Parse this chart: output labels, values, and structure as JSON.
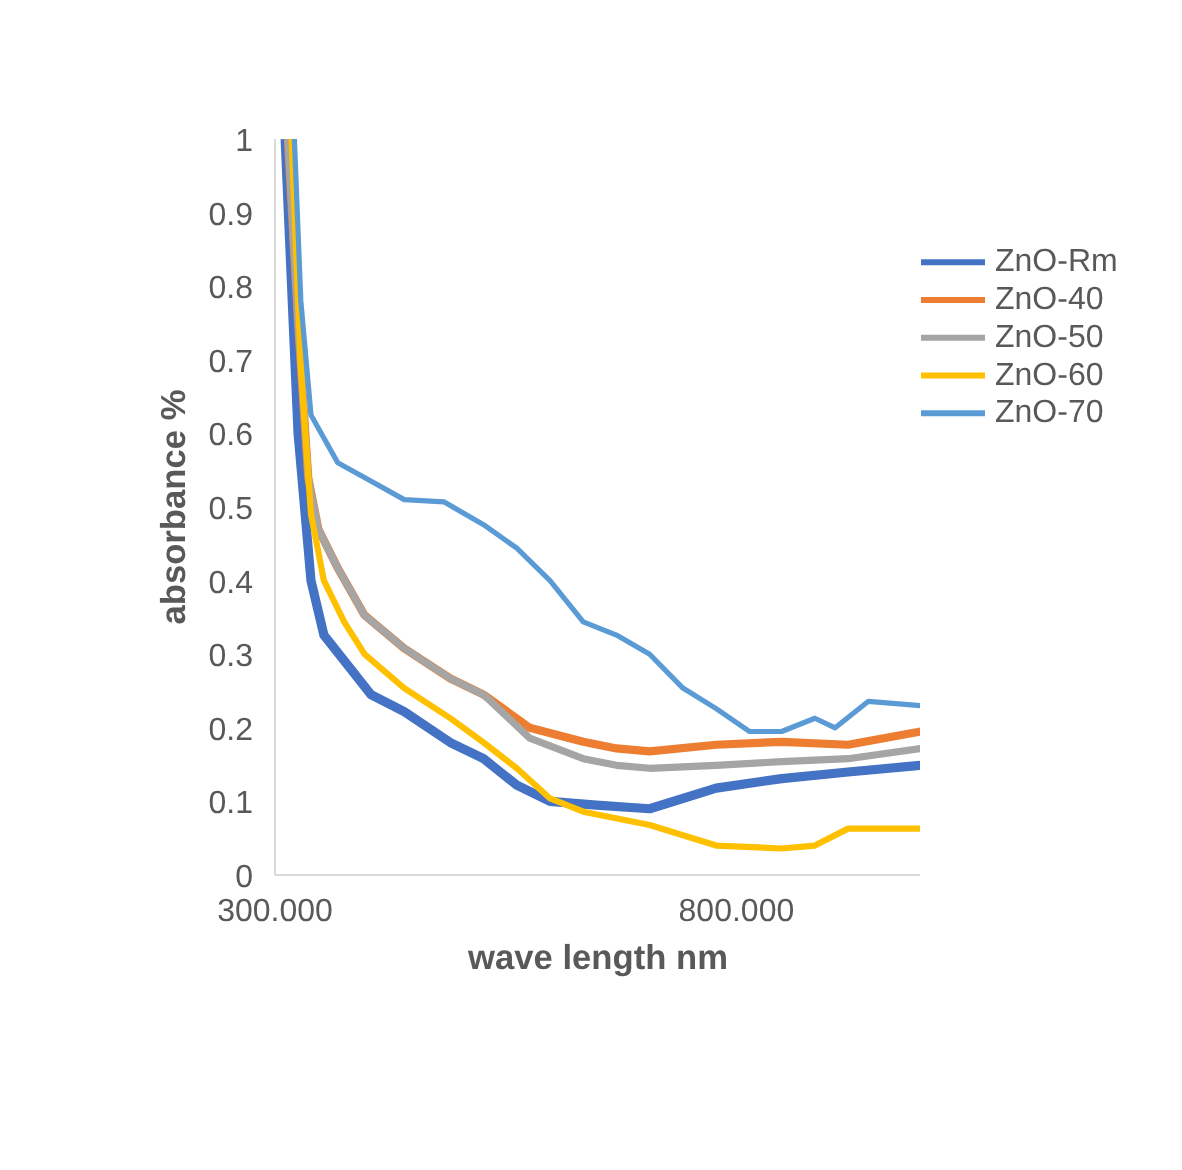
{
  "chart_data": {
    "type": "line",
    "xlabel": "wave length nm",
    "ylabel": "absorbance %",
    "xlim": [
      300,
      1000
    ],
    "xticks": [
      {
        "value": 300,
        "label": "300.000"
      },
      {
        "value": 800,
        "label": "800.000"
      }
    ],
    "ylim": [
      0,
      1
    ],
    "yticks": [
      0,
      0.1,
      0.2,
      0.3,
      0.4,
      0.5,
      0.6,
      0.7,
      0.8,
      0.9,
      1
    ],
    "grid": false,
    "legend": "top right",
    "line_style": "solid",
    "marker": "none",
    "series": [
      {
        "name": "ZnO-Rm",
        "color": "#4472c4",
        "x": [
          311,
          325,
          339,
          353,
          382,
          404,
          440,
          490,
          526,
          562,
          598,
          648,
          706,
          778,
          849,
          921,
          1000
        ],
        "values": [
          1,
          0.6,
          0.4,
          0.326,
          0.28,
          0.245,
          0.222,
          0.18,
          0.158,
          0.122,
          0.1,
          0.095,
          0.09,
          0.118,
          0.131,
          0.14,
          0.149
        ]
      },
      {
        "name": "ZnO-40",
        "color": "#ed7d31",
        "x": [
          314,
          325,
          336,
          347,
          368,
          397,
          440,
          490,
          526,
          576,
          634,
          670,
          706,
          778,
          849,
          921,
          1000
        ],
        "values": [
          1,
          0.75,
          0.54,
          0.47,
          0.417,
          0.353,
          0.308,
          0.267,
          0.245,
          0.2,
          0.181,
          0.172,
          0.168,
          0.177,
          0.181,
          0.177,
          0.195
        ]
      },
      {
        "name": "ZnO-50",
        "color": "#a5a5a5",
        "x": [
          314,
          325,
          336,
          347,
          368,
          397,
          440,
          490,
          526,
          576,
          634,
          670,
          706,
          778,
          849,
          921,
          1000
        ],
        "values": [
          1,
          0.75,
          0.54,
          0.47,
          0.417,
          0.353,
          0.308,
          0.267,
          0.245,
          0.186,
          0.158,
          0.149,
          0.145,
          0.149,
          0.154,
          0.158,
          0.172
        ]
      },
      {
        "name": "ZnO-60",
        "color": "#ffc000",
        "x": [
          318,
          328,
          339,
          353,
          375,
          397,
          440,
          490,
          526,
          562,
          598,
          634,
          706,
          778,
          849,
          885,
          921,
          1000
        ],
        "values": [
          1,
          0.69,
          0.49,
          0.4,
          0.344,
          0.3,
          0.254,
          0.213,
          0.18,
          0.145,
          0.104,
          0.086,
          0.068,
          0.04,
          0.036,
          0.04,
          0.063,
          0.063
        ]
      },
      {
        "name": "ZnO-70",
        "color": "#5b9bd5",
        "x": [
          321,
          328,
          339,
          347,
          368,
          397,
          440,
          483,
          526,
          562,
          598,
          634,
          670,
          706,
          742,
          778,
          814,
          849,
          885,
          907,
          943,
          1000
        ],
        "values": [
          1,
          0.78,
          0.625,
          0.607,
          0.56,
          0.54,
          0.51,
          0.507,
          0.476,
          0.444,
          0.4,
          0.344,
          0.326,
          0.3,
          0.254,
          0.226,
          0.195,
          0.195,
          0.213,
          0.2,
          0.236,
          0.23
        ]
      }
    ]
  }
}
